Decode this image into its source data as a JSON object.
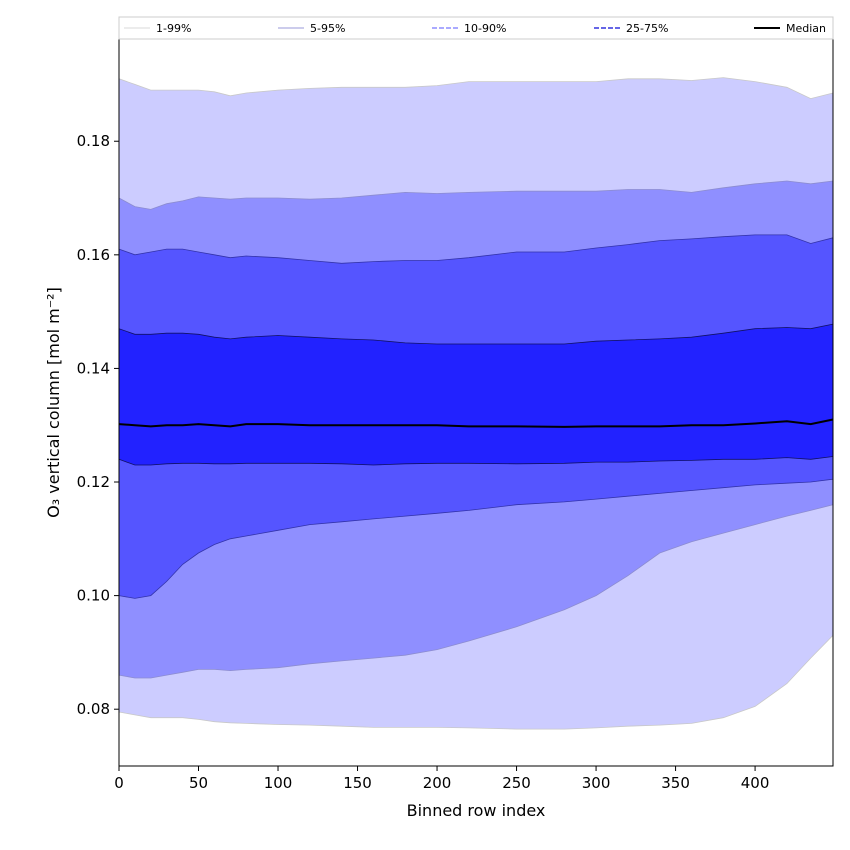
{
  "chart_data": {
    "type": "area",
    "title": "",
    "xlabel": "Binned row index",
    "ylabel": "O₃ vertical column [mol m⁻²]",
    "xlim": [
      0,
      449
    ],
    "ylim": [
      0.07,
      0.198
    ],
    "x_ticks": [
      0,
      50,
      100,
      150,
      200,
      250,
      300,
      350,
      400
    ],
    "y_ticks": [
      0.08,
      0.1,
      0.12,
      0.14,
      0.16,
      0.18
    ],
    "y_tick_labels": [
      "0.08",
      "0.10",
      "0.12",
      "0.14",
      "0.16",
      "0.18"
    ],
    "grid": false,
    "legend_position": "top",
    "x": [
      0,
      10,
      20,
      30,
      40,
      50,
      60,
      70,
      80,
      100,
      120,
      140,
      160,
      180,
      200,
      220,
      250,
      280,
      300,
      320,
      340,
      360,
      380,
      400,
      420,
      435,
      449
    ],
    "bands": [
      {
        "name": "1-99%",
        "color": "#ccccff",
        "edge_color": "#c8c8c8",
        "lower": [
          0.0795,
          0.079,
          0.0785,
          0.0785,
          0.0785,
          0.0782,
          0.0778,
          0.0776,
          0.0775,
          0.0773,
          0.0772,
          0.077,
          0.0768,
          0.0768,
          0.0768,
          0.0767,
          0.0765,
          0.0765,
          0.0767,
          0.077,
          0.0772,
          0.0775,
          0.0785,
          0.0805,
          0.0845,
          0.089,
          0.093
        ],
        "upper": [
          0.191,
          0.19,
          0.189,
          0.189,
          0.189,
          0.189,
          0.1887,
          0.188,
          0.1885,
          0.189,
          0.1893,
          0.1895,
          0.1895,
          0.1895,
          0.1898,
          0.1905,
          0.1905,
          0.1905,
          0.1905,
          0.191,
          0.191,
          0.1907,
          0.1912,
          0.1905,
          0.1895,
          0.1875,
          0.1885
        ]
      },
      {
        "name": "5-95%",
        "color": "#8f8fff",
        "edge_color": "#8c8cd0",
        "lower": [
          0.086,
          0.0855,
          0.0855,
          0.086,
          0.0865,
          0.087,
          0.087,
          0.0868,
          0.087,
          0.0873,
          0.088,
          0.0885,
          0.089,
          0.0895,
          0.0905,
          0.092,
          0.0945,
          0.0975,
          0.1,
          0.1035,
          0.1075,
          0.1095,
          0.111,
          0.1125,
          0.114,
          0.115,
          0.116
        ],
        "upper": [
          0.17,
          0.1685,
          0.168,
          0.169,
          0.1695,
          0.1702,
          0.17,
          0.1698,
          0.17,
          0.17,
          0.1698,
          0.17,
          0.1705,
          0.171,
          0.1708,
          0.171,
          0.1712,
          0.1712,
          0.1712,
          0.1715,
          0.1715,
          0.171,
          0.1718,
          0.1725,
          0.173,
          0.1725,
          0.173
        ]
      },
      {
        "name": "10-90%",
        "color": "#5555ff",
        "edge_color": "#3333aa",
        "lower": [
          0.1,
          0.0995,
          0.1,
          0.1025,
          0.1055,
          0.1075,
          0.109,
          0.11,
          0.1105,
          0.1115,
          0.1125,
          0.113,
          0.1135,
          0.114,
          0.1145,
          0.115,
          0.116,
          0.1165,
          0.117,
          0.1175,
          0.118,
          0.1185,
          0.119,
          0.1195,
          0.1198,
          0.12,
          0.1205
        ],
        "upper": [
          0.161,
          0.16,
          0.1605,
          0.161,
          0.161,
          0.1605,
          0.16,
          0.1595,
          0.1598,
          0.1595,
          0.159,
          0.1585,
          0.1588,
          0.159,
          0.159,
          0.1595,
          0.1605,
          0.1605,
          0.1612,
          0.1618,
          0.1625,
          0.1628,
          0.1632,
          0.1635,
          0.1635,
          0.162,
          0.163
        ]
      },
      {
        "name": "25-75%",
        "color": "#2222ff",
        "edge_color": "#111166",
        "lower": [
          0.124,
          0.123,
          0.123,
          0.1232,
          0.1233,
          0.1233,
          0.1232,
          0.1232,
          0.1233,
          0.1233,
          0.1233,
          0.1232,
          0.123,
          0.1232,
          0.1233,
          0.1233,
          0.1232,
          0.1233,
          0.1235,
          0.1235,
          0.1237,
          0.1238,
          0.124,
          0.124,
          0.1243,
          0.124,
          0.1245
        ],
        "upper": [
          0.147,
          0.146,
          0.146,
          0.1462,
          0.1462,
          0.146,
          0.1455,
          0.1452,
          0.1455,
          0.1458,
          0.1455,
          0.1452,
          0.145,
          0.1445,
          0.1443,
          0.1443,
          0.1443,
          0.1443,
          0.1448,
          0.145,
          0.1452,
          0.1455,
          0.1462,
          0.147,
          0.1472,
          0.147,
          0.1478
        ]
      }
    ],
    "median": {
      "name": "Median",
      "color": "#000000",
      "values": [
        0.1302,
        0.13,
        0.1298,
        0.13,
        0.13,
        0.1302,
        0.13,
        0.1298,
        0.1302,
        0.1302,
        0.13,
        0.13,
        0.13,
        0.13,
        0.13,
        0.1298,
        0.1298,
        0.1297,
        0.1298,
        0.1298,
        0.1298,
        0.13,
        0.13,
        0.1303,
        0.1307,
        0.1302,
        0.131
      ]
    },
    "legend": [
      {
        "label": "1-99%",
        "style": "solid",
        "color": "#d8d8d8",
        "width": 1
      },
      {
        "label": "5-95%",
        "style": "solid",
        "color": "#9a9ad8",
        "width": 1
      },
      {
        "label": "10-90%",
        "style": "dashed",
        "color": "#7777ff",
        "width": 1.2
      },
      {
        "label": "25-75%",
        "style": "dashed",
        "color": "#3333dd",
        "width": 1.4
      },
      {
        "label": "Median",
        "style": "solid",
        "color": "#000000",
        "width": 2
      }
    ]
  }
}
